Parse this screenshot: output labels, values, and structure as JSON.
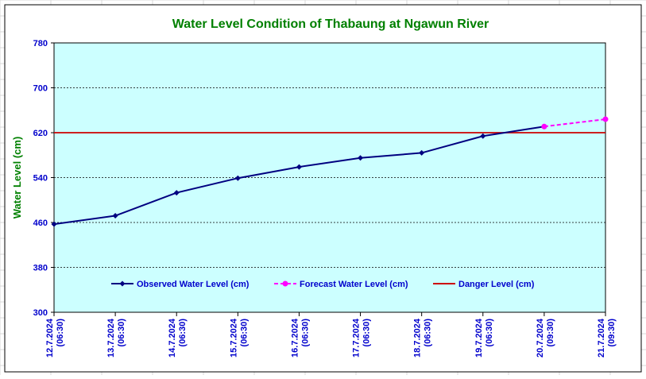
{
  "colors": {
    "title": "#008000",
    "ylabel": "#008000",
    "tick_text": "#0000cc",
    "plot_bg": "#ccffff",
    "frame": "#000000",
    "grid": "#000000",
    "observed": "#000080",
    "forecast": "#ff00ff",
    "danger": "#cc0000",
    "sheet_grid": "#d9d9d9"
  },
  "chart_data": {
    "type": "line",
    "title": "Water Level Condition of Thabaung at Ngawun River",
    "xlabel": "",
    "ylabel": "Water Level (cm)",
    "ylim": [
      300,
      780
    ],
    "yticks": [
      300,
      380,
      460,
      540,
      620,
      700,
      780
    ],
    "ytick_labels": [
      "300",
      "380",
      "460",
      "540",
      "620",
      "700",
      "780"
    ],
    "grid": "horizontal dashed",
    "legend_position": "bottom-center inside plot",
    "categories": [
      {
        "date": "12.7.2024",
        "time": "(06:30)"
      },
      {
        "date": "13.7.2024",
        "time": "(06:30)"
      },
      {
        "date": "14.7.2024",
        "time": "(06:30)"
      },
      {
        "date": "15.7.2024",
        "time": "(06:30)"
      },
      {
        "date": "16.7.2024",
        "time": "(06:30)"
      },
      {
        "date": "17.7.2024",
        "time": "(06:30)"
      },
      {
        "date": "18.7.2024",
        "time": "(06:30)"
      },
      {
        "date": "19.7.2024",
        "time": "(06:30)"
      },
      {
        "date": "20.7.2024",
        "time": "(09:30)"
      },
      {
        "date": "21.7.2024",
        "time": "(09:30)"
      }
    ],
    "series": [
      {
        "name": "Observed Water Level (cm)",
        "style": "solid",
        "marker": "diamond",
        "color": "#000080",
        "values": [
          457,
          472,
          513,
          539,
          559,
          575,
          584,
          614,
          631,
          null
        ]
      },
      {
        "name": "Forecast Water Level (cm)",
        "style": "dashed",
        "marker": "circle",
        "color": "#ff00ff",
        "values": [
          null,
          null,
          null,
          null,
          null,
          null,
          null,
          null,
          631,
          644
        ]
      },
      {
        "name": "Danger Level (cm)",
        "style": "solid",
        "marker": "none",
        "color": "#cc0000",
        "values": [
          620,
          620,
          620,
          620,
          620,
          620,
          620,
          620,
          620,
          620
        ]
      }
    ]
  }
}
